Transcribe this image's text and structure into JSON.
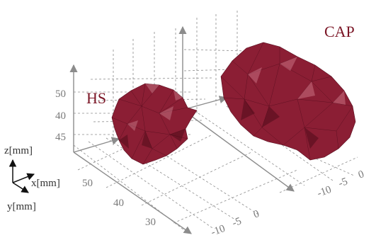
{
  "objects": {
    "hs_label": "HS",
    "cap_label": "CAP",
    "color": "#8b1e34"
  },
  "axes": {
    "z_ticks": [
      "50",
      "40",
      "45"
    ],
    "y_ticks": [
      "50",
      "40",
      "30"
    ],
    "x_ticks_front": [
      "-10",
      "-5",
      "0"
    ],
    "x_ticks_back": [
      "-10",
      "-5",
      "0"
    ]
  },
  "triad": {
    "z_label": "z[mm]",
    "x_label": "x[mm]",
    "y_label": "y[mm]"
  }
}
